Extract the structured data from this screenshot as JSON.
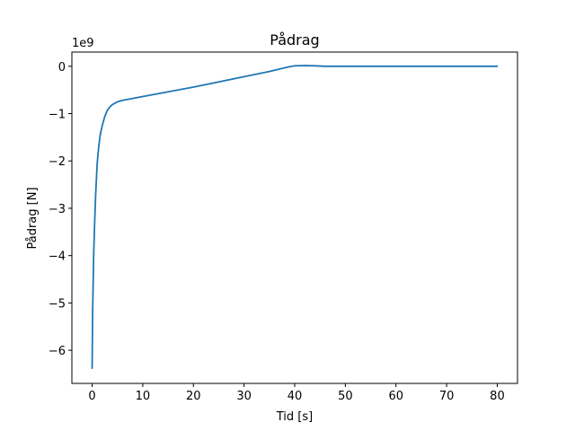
{
  "chart_data": {
    "type": "line",
    "title": "Pådrag",
    "xlabel": "Tid [s]",
    "ylabel": "Pådrag [N]",
    "y_offset_label": "1e9",
    "xlim": [
      -4,
      84
    ],
    "ylim": [
      -6.7,
      0.3
    ],
    "y_scale_factor": 1000000000,
    "xticks": [
      0,
      10,
      20,
      30,
      40,
      50,
      60,
      70,
      80
    ],
    "xtick_labels": [
      "0",
      "10",
      "20",
      "30",
      "40",
      "50",
      "60",
      "70",
      "80"
    ],
    "yticks": [
      0,
      -1,
      -2,
      -3,
      -4,
      -5,
      -6
    ],
    "ytick_labels": [
      "0",
      "−1",
      "−2",
      "−3",
      "−4",
      "−5",
      "−6"
    ],
    "grid": false,
    "line_color": "#1f77b4",
    "series": [
      {
        "x": [
          0,
          0.1,
          0.2,
          0.3,
          0.5,
          0.7,
          1.0,
          1.3,
          1.6,
          2.0,
          2.5,
          3.0,
          3.5,
          4.0,
          4.5,
          5.0,
          6.0,
          7.0,
          8.0,
          10.0,
          15.0,
          20.0,
          25.0,
          30.0,
          35.0,
          38.5,
          40.0,
          42.0,
          44.0,
          46.0,
          50.0,
          60.0,
          70.0,
          80.0
        ],
        "y": [
          -6.38,
          -5.2,
          -4.6,
          -4.0,
          -3.3,
          -2.7,
          -2.05,
          -1.7,
          -1.45,
          -1.25,
          -1.06,
          -0.93,
          -0.86,
          -0.81,
          -0.78,
          -0.75,
          -0.72,
          -0.7,
          -0.68,
          -0.64,
          -0.54,
          -0.44,
          -0.33,
          -0.22,
          -0.11,
          -0.02,
          0.01,
          0.015,
          0.01,
          0.0,
          0.0,
          0.0,
          0.0,
          0.0
        ]
      }
    ]
  }
}
